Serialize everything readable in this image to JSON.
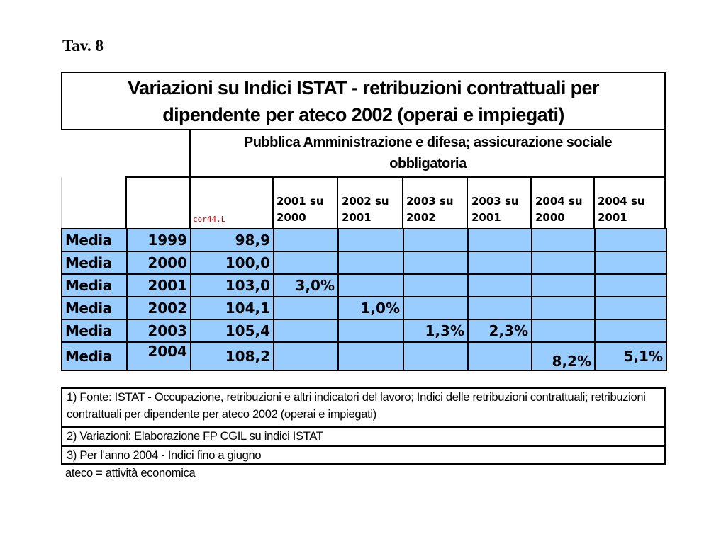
{
  "tav_label": "Tav. 8",
  "title": "Variazioni su Indici ISTAT - retribuzioni contrattuali per dipendente per ateco 2002 (operai e impiegati)",
  "section_header": "Pubblica Amministrazione e difesa; assicurazione sociale obbligatoria",
  "index_code": "cor44.L",
  "column_headers": [
    {
      "top": "2001 su",
      "bottom": "2000"
    },
    {
      "top": "2002 su",
      "bottom": "2001"
    },
    {
      "top": "2003 su",
      "bottom": "2002"
    },
    {
      "top": "2003 su",
      "bottom": "2001"
    },
    {
      "top": "2004 su",
      "bottom": "2000"
    },
    {
      "top": "2004 su",
      "bottom": "2001"
    }
  ],
  "rows": [
    {
      "label": "Media",
      "year": "1999",
      "index": "98,9",
      "variations": [
        "",
        "",
        "",
        "",
        "",
        ""
      ]
    },
    {
      "label": "Media",
      "year": "2000",
      "index": "100,0",
      "variations": [
        "",
        "",
        "",
        "",
        "",
        ""
      ]
    },
    {
      "label": "Media",
      "year": "2001",
      "index": "103,0",
      "variations": [
        "3,0%",
        "",
        "",
        "",
        "",
        ""
      ]
    },
    {
      "label": "Media",
      "year": "2002",
      "index": "104,1",
      "variations": [
        "",
        "1,0%",
        "",
        "",
        "",
        ""
      ]
    },
    {
      "label": "Media",
      "year": "2003",
      "index": "105,4",
      "variations": [
        "",
        "",
        "1,3%",
        "2,3%",
        "",
        ""
      ]
    },
    {
      "label": "Media",
      "year": "2004",
      "index": "108,2",
      "variations": [
        "",
        "",
        "",
        "",
        "8,2%",
        "5,1%"
      ]
    }
  ],
  "notes": [
    "1) Fonte: ISTAT - Occupazione, retribuzioni e altri indicatori del lavoro; Indici delle retribuzioni contrattuali; retribuzioni contrattuali per dipendente per ateco 2002 (operai e impiegati)",
    "2) Variazioni: Elaborazione FP CGIL su indici ISTAT",
    "3) Per l'anno 2004 - Indici fino a giugno",
    "ateco = attività economica"
  ],
  "colors": {
    "cell_background": "#99ccff",
    "index_code_color": "#cc0000"
  }
}
